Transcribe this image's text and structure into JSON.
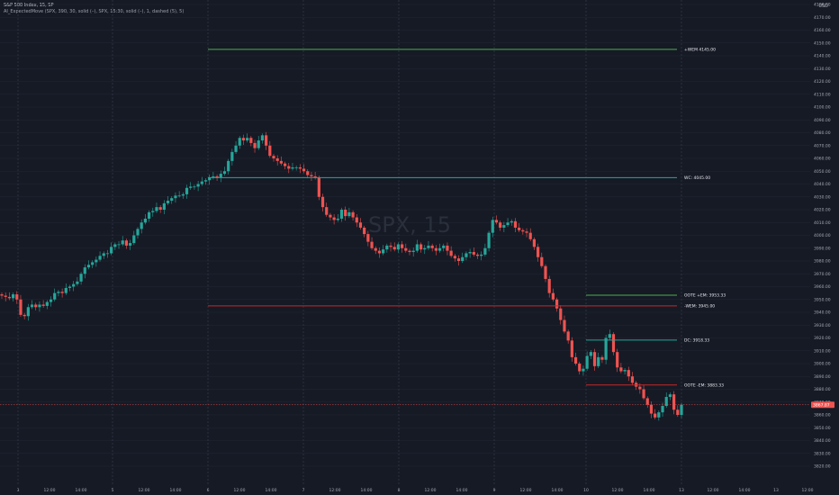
{
  "header": {
    "title": "S&P 500 Index, 15, SP",
    "indicator": "AI_ExpectedMove (SPX, 390, 30, solid (–), SPX, 15:30, solid (–), 1, dashed (5), 5)"
  },
  "currency": "USD",
  "colors": {
    "background": "#161a25",
    "up": "#26a69a",
    "down": "#ef5350",
    "grid": "#232735",
    "green_level": "#4caf50",
    "red_level": "#c62828",
    "teal_level": "#26a69a",
    "last_price_bg": "#ef5350"
  },
  "chart_data": {
    "type": "candlestick",
    "symbol_watermark": "SPX, 15",
    "ylim": [
      3820,
      4180
    ],
    "y_ticks": [
      3820,
      3830,
      3840,
      3850,
      3860,
      3870,
      3880,
      3890,
      3900,
      3910,
      3920,
      3930,
      3940,
      3950,
      3960,
      3970,
      3980,
      3990,
      4000,
      4010,
      4020,
      4030,
      4040,
      4050,
      4060,
      4070,
      4080,
      4090,
      4100,
      4110,
      4120,
      4130,
      4140,
      4150,
      4160,
      4170,
      4180
    ],
    "x_tick_labels": [
      "3",
      "12:00",
      "14:00",
      "5",
      "12:00",
      "14:00",
      "6",
      "12:00",
      "14:00",
      "7",
      "12:00",
      "14:00",
      "8",
      "12:00",
      "14:00",
      "9",
      "12:00",
      "14:00",
      "10",
      "12:00",
      "14:00",
      "13",
      "12:00",
      "14:00",
      "13",
      "12:00"
    ],
    "day_separators": [
      "3",
      "5",
      "6",
      "7",
      "8",
      "9",
      "10",
      "13"
    ],
    "levels": [
      {
        "label": "+WEM 4145.00",
        "value": 4145.0,
        "color": "#4caf50"
      },
      {
        "label": "WC: 4045.00",
        "value": 4045.0,
        "color": "#26a69a"
      },
      {
        "label": "OOTE +EM: 3953.33",
        "value": 3953.33,
        "color": "#4caf50"
      },
      {
        "label": "-WEM: 3945.00",
        "value": 3945.0,
        "color": "#c62828"
      },
      {
        "label": "DC: 3918.33",
        "value": 3918.33,
        "color": "#26a69a"
      },
      {
        "label": "OOTE -EM: 3883.33",
        "value": 3883.33,
        "color": "#c62828"
      }
    ],
    "last_price": 3867.87,
    "last_price_label": "3867.87",
    "closes": [
      3953,
      3952,
      3951,
      3954,
      3950,
      3938,
      3937,
      3944,
      3946,
      3944,
      3946,
      3945,
      3948,
      3950,
      3955,
      3956,
      3955,
      3959,
      3960,
      3962,
      3964,
      3970,
      3975,
      3977,
      3979,
      3981,
      3984,
      3986,
      3986,
      3991,
      3993,
      3993,
      3996,
      3992,
      3994,
      4000,
      4005,
      4010,
      4013,
      4018,
      4019,
      4022,
      4020,
      4025,
      4027,
      4029,
      4031,
      4031,
      4032,
      4037,
      4038,
      4038,
      4040,
      4042,
      4043,
      4045,
      4046,
      4045,
      4048,
      4050,
      4058,
      4065,
      4070,
      4076,
      4074,
      4076,
      4072,
      4068,
      4074,
      4078,
      4070,
      4062,
      4060,
      4058,
      4056,
      4054,
      4052,
      4053,
      4053,
      4052,
      4050,
      4047,
      4046,
      4045,
      4030,
      4022,
      4016,
      4014,
      4012,
      4013,
      4020,
      4015,
      4018,
      4014,
      4010,
      4006,
      4001,
      3995,
      3990,
      3988,
      3986,
      3989,
      3992,
      3991,
      3989,
      3993,
      3990,
      3988,
      3987,
      3988,
      3993,
      3989,
      3990,
      3992,
      3990,
      3988,
      3990,
      3992,
      3988,
      3984,
      3982,
      3980,
      3983,
      3986,
      3987,
      3985,
      3984,
      3985,
      3990,
      4002,
      4012,
      4010,
      4006,
      4008,
      4010,
      4011,
      4006,
      4004,
      4003,
      4002,
      3997,
      3991,
      3983,
      3976,
      3966,
      3955,
      3950,
      3943,
      3934,
      3925,
      3918,
      3905,
      3900,
      3894,
      3896,
      3906,
      3909,
      3898,
      3905,
      3903,
      3920,
      3923,
      3909,
      3897,
      3894,
      3895,
      3890,
      3885,
      3882,
      3880,
      3873,
      3868,
      3861,
      3858,
      3862,
      3867,
      3874,
      3876,
      3864,
      3860,
      3868
    ]
  }
}
